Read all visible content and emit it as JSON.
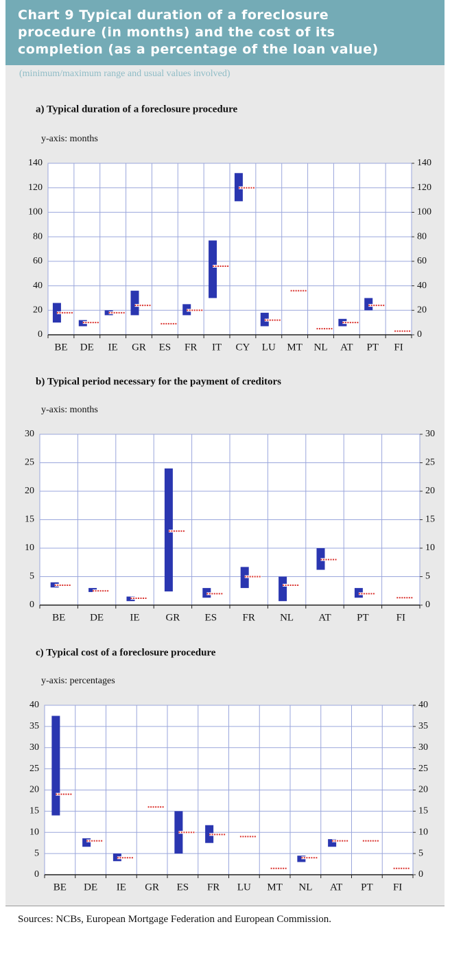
{
  "title_lines": [
    "Chart 9 Typical duration of a foreclosure",
    "procedure (in months) and the cost of its",
    "completion (as a percentage of the loan value)"
  ],
  "subtitle": "(minimum/maximum range and usual values involved)",
  "source": "Sources: NCBs, European Mortgage Federation and European Commission.",
  "chart_data": [
    {
      "type": "range",
      "title": "a) Typical duration of a foreclosure procedure",
      "y_label": "y-axis: months",
      "categories": [
        "BE",
        "DE",
        "IE",
        "GR",
        "ES",
        "FR",
        "IT",
        "CY",
        "LU",
        "MT",
        "NL",
        "AT",
        "PT",
        "FI"
      ],
      "min": [
        10,
        7,
        16,
        16,
        null,
        16,
        30,
        109,
        7,
        null,
        null,
        7,
        20,
        null
      ],
      "max": [
        26,
        12,
        20,
        36,
        null,
        25,
        77,
        132,
        18,
        null,
        null,
        13,
        30,
        null
      ],
      "usual": [
        18,
        10,
        18,
        24,
        9,
        20,
        56,
        120,
        12,
        36,
        5,
        10,
        24,
        3
      ],
      "ylim": [
        0,
        140
      ],
      "yticks": [
        0,
        20,
        40,
        60,
        80,
        100,
        120,
        140
      ],
      "y2lim": [
        0,
        140
      ],
      "y2ticks": [
        0,
        20,
        40,
        60,
        80,
        100,
        120,
        140
      ],
      "bar_color": "#2a36b0",
      "marker_color": "#d9302c",
      "grid": true
    },
    {
      "type": "range",
      "title": "b) Typical period necessary for the payment of creditors",
      "y_label": "y-axis: months",
      "categories": [
        "BE",
        "DE",
        "IE",
        "GR",
        "ES",
        "FR",
        "NL",
        "AT",
        "PT",
        "FI"
      ],
      "min": [
        3.1,
        2.3,
        0.7,
        2.4,
        1.3,
        3,
        0.7,
        6.2,
        1.3,
        null
      ],
      "max": [
        4,
        3,
        1.5,
        24,
        3,
        6.7,
        5,
        10,
        3,
        null
      ],
      "usual": [
        3.5,
        2.5,
        1.2,
        13,
        2,
        5,
        3.5,
        8,
        2,
        1.3
      ],
      "ylim": [
        0,
        30
      ],
      "yticks": [
        0,
        5,
        10,
        15,
        20,
        25,
        30
      ],
      "y2lim": [
        0,
        30
      ],
      "y2ticks": [
        0,
        5,
        10,
        15,
        20,
        25,
        30
      ],
      "bar_color": "#2a36b0",
      "marker_color": "#d9302c",
      "grid": true
    },
    {
      "type": "range",
      "title": "c) Typical cost of a foreclosure procedure",
      "y_label": "y-axis: percentages",
      "categories": [
        "BE",
        "DE",
        "IE",
        "GR",
        "ES",
        "FR",
        "LU",
        "MT",
        "NL",
        "AT",
        "PT",
        "FI"
      ],
      "min": [
        14,
        6.6,
        3.2,
        null,
        5,
        7.5,
        null,
        null,
        3,
        6.6,
        null,
        null
      ],
      "max": [
        37.5,
        8.6,
        5,
        null,
        15,
        11.7,
        null,
        null,
        4.5,
        8.4,
        null,
        null
      ],
      "usual": [
        19,
        8,
        4,
        16,
        10,
        9.5,
        9,
        1.5,
        4,
        8,
        8,
        1.5
      ],
      "ylim": [
        0,
        40
      ],
      "yticks": [
        0,
        5,
        10,
        15,
        20,
        25,
        30,
        35,
        40
      ],
      "y2lim": [
        0,
        40
      ],
      "y2ticks": [
        0,
        5,
        10,
        15,
        20,
        25,
        30,
        35,
        40
      ],
      "bar_color": "#2a36b0",
      "marker_color": "#d9302c",
      "grid": true
    }
  ]
}
